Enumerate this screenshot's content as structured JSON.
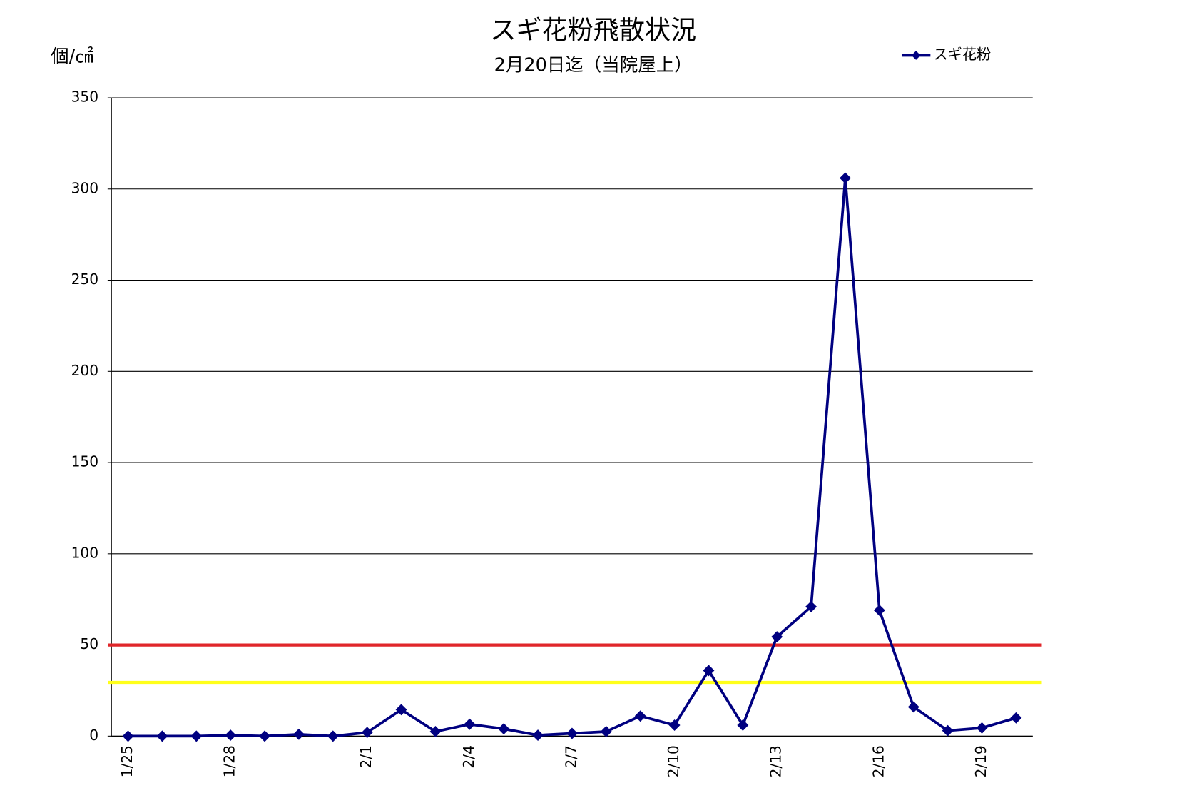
{
  "chart_data": {
    "type": "line",
    "title": "スギ花粉飛散状況",
    "subtitle": "2月20日迄（当院屋上）",
    "y_label": "個/㎠",
    "categories": [
      "1/25",
      null,
      null,
      "1/28",
      null,
      null,
      null,
      "2/1",
      null,
      null,
      "2/4",
      null,
      null,
      "2/7",
      null,
      null,
      "2/10",
      null,
      null,
      "2/13",
      null,
      null,
      "2/16",
      null,
      null,
      "2/19",
      null
    ],
    "series": [
      {
        "name": "スギ花粉",
        "color": "#000080",
        "values": [
          0,
          0,
          0,
          0.5,
          0,
          1,
          0,
          2,
          14.5,
          2.5,
          6.5,
          4,
          0.5,
          1.5,
          2.5,
          11,
          6,
          36,
          6,
          54.5,
          71,
          306,
          69,
          16,
          3,
          4.5,
          10
        ]
      }
    ],
    "reference_lines": [
      {
        "value": 50,
        "color": "#e0262a"
      },
      {
        "value": 29.5,
        "color": "#ffff1a"
      }
    ],
    "ylim": [
      0,
      350
    ],
    "yticks": [
      0,
      50,
      100,
      150,
      200,
      250,
      300,
      350
    ],
    "grid": true,
    "legend": "top-right"
  }
}
